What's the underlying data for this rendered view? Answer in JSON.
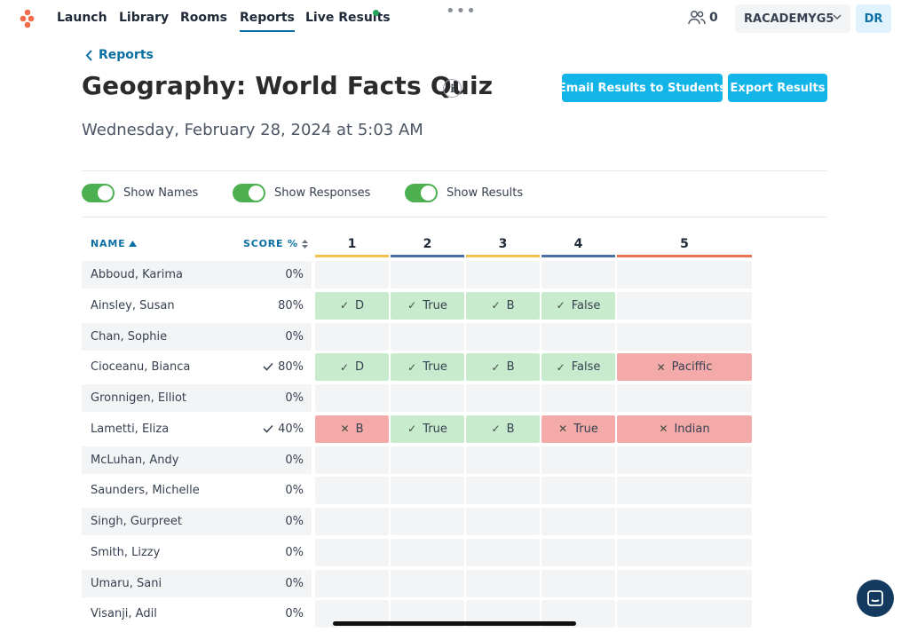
{
  "nav": {
    "items": [
      {
        "label": "Launch"
      },
      {
        "label": "Library"
      },
      {
        "label": "Rooms"
      },
      {
        "label": "Reports"
      },
      {
        "label": "Live Results"
      }
    ],
    "users_count": "0",
    "room_name": "RACADEMYG5",
    "avatar_initials": "DR"
  },
  "header": {
    "back_label": "Reports",
    "title": "Geography: World Facts Quiz",
    "info_icon_glyph": "i",
    "email_button": "Email Results to Students",
    "export_button": "Export Results",
    "date": "Wednesday, February 28, 2024 at 5:03 AM"
  },
  "toggles": [
    {
      "label": "Show Names",
      "on": true
    },
    {
      "label": "Show Responses",
      "on": true
    },
    {
      "label": "Show Results",
      "on": true
    }
  ],
  "table": {
    "name_header": "NAME",
    "score_header": "SCORE %",
    "questions": [
      {
        "label": "1",
        "color": "#f2c14e"
      },
      {
        "label": "2",
        "color": "#4a6fa5"
      },
      {
        "label": "3",
        "color": "#f2c14e"
      },
      {
        "label": "4",
        "color": "#4a6fa5"
      },
      {
        "label": "5",
        "color": "#e8744f"
      }
    ],
    "rows": [
      {
        "name": "Abboud, Karima",
        "score": "0%",
        "checked": false,
        "answers": [
          null,
          null,
          null,
          null,
          null
        ]
      },
      {
        "name": "Ainsley, Susan",
        "score": "80%",
        "checked": false,
        "answers": [
          {
            "text": "D",
            "correct": true
          },
          {
            "text": "True",
            "correct": true
          },
          {
            "text": "B",
            "correct": true
          },
          {
            "text": "False",
            "correct": true
          },
          null
        ]
      },
      {
        "name": "Chan, Sophie",
        "score": "0%",
        "checked": false,
        "answers": [
          null,
          null,
          null,
          null,
          null
        ]
      },
      {
        "name": "Cioceanu, Bianca",
        "score": "80%",
        "checked": true,
        "answers": [
          {
            "text": "D",
            "correct": true
          },
          {
            "text": "True",
            "correct": true
          },
          {
            "text": "B",
            "correct": true
          },
          {
            "text": "False",
            "correct": true
          },
          {
            "text": "Paciffic",
            "correct": false
          }
        ]
      },
      {
        "name": "Gronnigen, Elliot",
        "score": "0%",
        "checked": false,
        "answers": [
          null,
          null,
          null,
          null,
          null
        ]
      },
      {
        "name": "Lametti, Eliza",
        "score": "40%",
        "checked": true,
        "answers": [
          {
            "text": "B",
            "correct": false
          },
          {
            "text": "True",
            "correct": true
          },
          {
            "text": "B",
            "correct": true
          },
          {
            "text": "True",
            "correct": false
          },
          {
            "text": "Indian",
            "correct": false
          }
        ]
      },
      {
        "name": "McLuhan, Andy",
        "score": "0%",
        "checked": false,
        "answers": [
          null,
          null,
          null,
          null,
          null
        ]
      },
      {
        "name": "Saunders, Michelle",
        "score": "0%",
        "checked": false,
        "answers": [
          null,
          null,
          null,
          null,
          null
        ]
      },
      {
        "name": "Singh, Gurpreet",
        "score": "0%",
        "checked": false,
        "answers": [
          null,
          null,
          null,
          null,
          null
        ]
      },
      {
        "name": "Smith, Lizzy",
        "score": "0%",
        "checked": false,
        "answers": [
          null,
          null,
          null,
          null,
          null
        ]
      },
      {
        "name": "Umaru, Sani",
        "score": "0%",
        "checked": false,
        "answers": [
          null,
          null,
          null,
          null,
          null
        ]
      },
      {
        "name": "Visanji, Adil",
        "score": "0%",
        "checked": false,
        "answers": [
          null,
          null,
          null,
          null,
          null
        ]
      }
    ]
  },
  "colors": {
    "accent": "#13b5e8",
    "link": "#0b6fa4",
    "correct": "#c8ebcd",
    "incorrect": "#f4aaa9",
    "toggle_on": "#4caf50"
  },
  "icons": {
    "logo": "app-logo-icon",
    "users": "users-icon",
    "chat": "chat-icon"
  }
}
